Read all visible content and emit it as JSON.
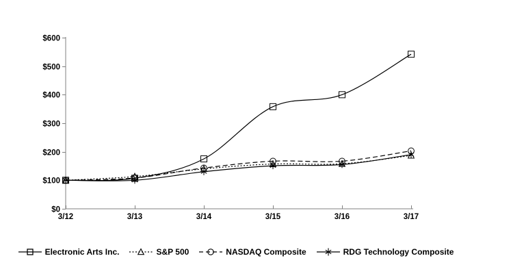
{
  "chart_data": {
    "type": "line",
    "title": "",
    "xlabel": "",
    "ylabel": "",
    "x_categories": [
      "3/12",
      "3/13",
      "3/14",
      "3/15",
      "3/16",
      "3/17"
    ],
    "y_ticks": [
      0,
      100,
      200,
      300,
      400,
      500,
      600
    ],
    "y_tick_labels": [
      "$0",
      "$100",
      "$200",
      "$300",
      "$400",
      "$500",
      "$600"
    ],
    "ylim": [
      0,
      600
    ],
    "grid": false,
    "legend_position": "bottom",
    "colors": {
      "series_color": "#000000",
      "axis_color": "#808080",
      "label_color": "#000000",
      "background": "#ffffff"
    },
    "series": [
      {
        "name": "Electronic Arts Inc.",
        "marker": "square",
        "marker_icon": "square-marker-icon",
        "line_style": "solid",
        "values": [
          100,
          107,
          175,
          358,
          400,
          542
        ]
      },
      {
        "name": "S&P 500",
        "marker": "triangle",
        "marker_icon": "triangle-marker-icon",
        "line_style": "dotted",
        "values": [
          100,
          113,
          140,
          157,
          158,
          187
        ]
      },
      {
        "name": "NASDAQ Composite",
        "marker": "circle",
        "marker_icon": "circle-marker-icon",
        "line_style": "dashed",
        "values": [
          100,
          108,
          143,
          167,
          167,
          203
        ]
      },
      {
        "name": "RDG Technology Composite",
        "marker": "asterisk",
        "marker_icon": "asterisk-marker-icon",
        "line_style": "solid",
        "values": [
          100,
          100,
          130,
          151,
          155,
          190
        ]
      }
    ]
  }
}
